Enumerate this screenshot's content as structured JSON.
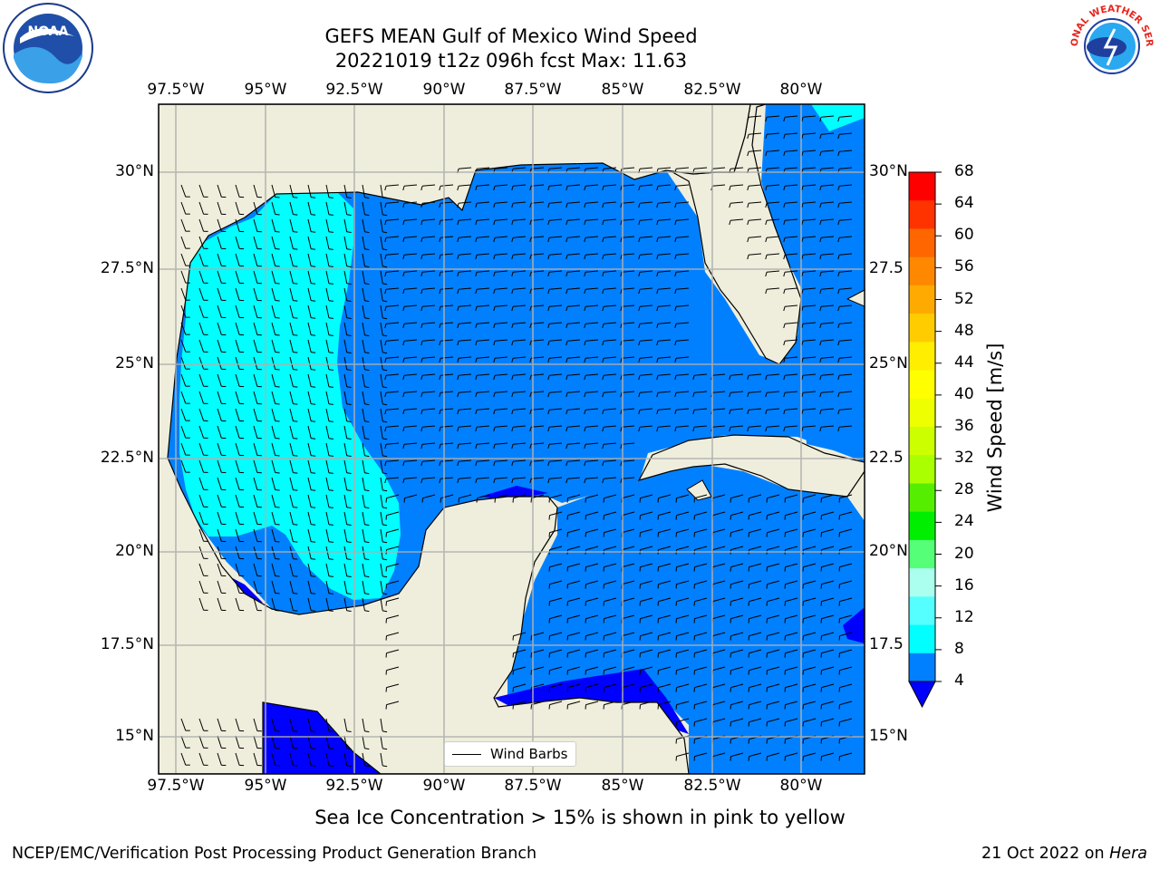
{
  "title_line1": "GEFS MEAN Gulf of Mexico Wind Speed",
  "title_line2": "20221019 t12z 096h fcst   Max: 11.63",
  "map": {
    "lon_ticks": [
      "97.5°W",
      "95°W",
      "92.5°W",
      "90°W",
      "87.5°W",
      "85°W",
      "82.5°W",
      "80°W"
    ],
    "lat_ticks_left": [
      "30°N",
      "27.5°N",
      "25°N",
      "22.5°N",
      "20°N",
      "17.5°N",
      "15°N"
    ],
    "lat_ticks_right": [
      "30°N",
      "27.5",
      "25°N",
      "22.5",
      "20°N",
      "17.5",
      "15°N"
    ],
    "legend_label": "Wind Barbs",
    "land_color": "#efeedc",
    "water_color_4_8": "#0080ff",
    "water_color_8_12": "#00ffff",
    "water_color_below_4": "#0000ff"
  },
  "colorbar": {
    "label": "Wind Speed [m/s]",
    "ticks": [
      "68",
      "64",
      "60",
      "56",
      "52",
      "48",
      "44",
      "40",
      "36",
      "32",
      "28",
      "24",
      "20",
      "16",
      "12",
      "8",
      "4"
    ],
    "colors_top_to_bottom": [
      "#ff0000",
      "#ff3300",
      "#ff6600",
      "#ff8800",
      "#ffaa00",
      "#ffcc00",
      "#ffee00",
      "#ffff00",
      "#eeff00",
      "#ccff00",
      "#aaff00",
      "#55ee00",
      "#00ee00",
      "#55ff77",
      "#aaffee",
      "#55ffff",
      "#00ffff",
      "#0080ff"
    ],
    "under_color": "#0000ff"
  },
  "caption": "Sea Ice Concentration > 15% is shown in pink to yellow",
  "footer_left": "NCEP/EMC/Verification Post Processing Product Generation Branch",
  "footer_right_date": "21 Oct 2022 on ",
  "footer_right_host": "Hera",
  "logos": {
    "noaa_text": "NOAA",
    "nws_text": "NATIONAL WEATHER SERVICE"
  }
}
